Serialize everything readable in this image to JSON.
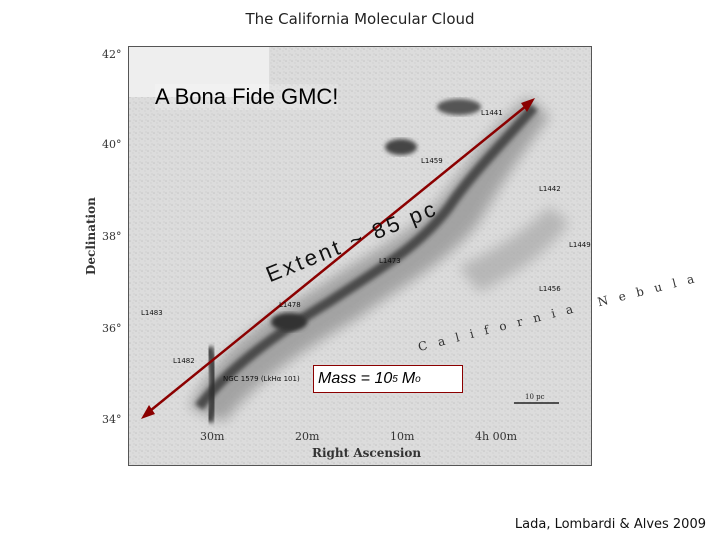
{
  "slide_title": "The California Molecular Cloud",
  "headline": "A Bona Fide GMC!",
  "extent_label": "Extent ~ 85 pc",
  "mass": {
    "prefix": "Mass = 10",
    "exponent": "5",
    "unit": "M",
    "subscript": "o"
  },
  "citation": "Lada, Lombardi & Alves 2009",
  "figure": {
    "ylabel": "Declination",
    "xlabel": "Right Ascension",
    "yticks": [
      "42°",
      "40°",
      "38°",
      "36°",
      "34°"
    ],
    "xticks": [
      "30m",
      "20m",
      "10m",
      "4h 00m"
    ],
    "regions": [
      "L1441",
      "L1459",
      "L1442",
      "L1449",
      "L1473",
      "L1456",
      "L1478",
      "L1483",
      "L1482",
      "NGC 1579 (LkHα 101)"
    ],
    "nebula_text": "California Nebula",
    "scalebar": "10 pc"
  },
  "colors": {
    "arrow": "#8b0000",
    "cloud": "#3a3a3a"
  }
}
